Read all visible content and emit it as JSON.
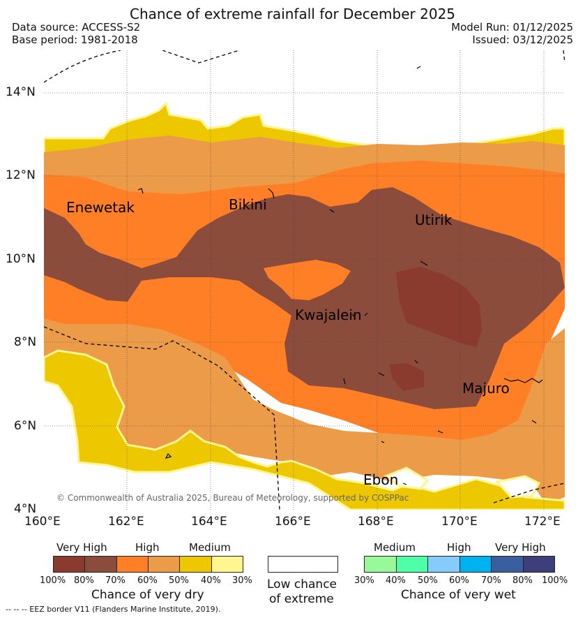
{
  "title": "Chance of extreme rainfall for December 2025",
  "header": {
    "data_source": "Data source: ACCESS-S2",
    "base_period": "Base period: 1981-2018",
    "model_run": "Model Run: 01/12/2025",
    "issued": "Issued: 03/12/2025"
  },
  "map": {
    "y_ticks": [
      "14°N",
      "12°N",
      "10°N",
      "8°N",
      "6°N",
      "4°N"
    ],
    "x_ticks": [
      "160°E",
      "162°E",
      "164°E",
      "166°E",
      "168°E",
      "170°E",
      "172°E"
    ],
    "place_labels": {
      "enewetak": "Enewetak",
      "bikini": "Bikini",
      "utirik": "Utirik",
      "kwajalein": "Kwajalein",
      "majuro": "Majuro",
      "ebon": "Ebon"
    },
    "copyright": "© Commonwealth of Australia 2025, Bureau of Meteorology, supported by COSPPac"
  },
  "legend": {
    "dry": {
      "levels": [
        "Very High",
        "High",
        "Medium"
      ],
      "ticks": [
        "100%",
        "80%",
        "70%",
        "60%",
        "50%",
        "40%",
        "30%"
      ],
      "colors": [
        "#8b3a2e",
        "#8b4c3c",
        "#ff7f27",
        "#ec9b48",
        "#edc800",
        "#fff68f"
      ],
      "caption": "Chance of very dry"
    },
    "low": {
      "caption_line1": "Low chance",
      "caption_line2": "of extreme"
    },
    "wet": {
      "levels": [
        "Medium",
        "High",
        "Very High"
      ],
      "ticks": [
        "30%",
        "40%",
        "50%",
        "60%",
        "70%",
        "80%",
        "100%"
      ],
      "colors": [
        "#98f99a",
        "#4dffa6",
        "#86ccfb",
        "#00b2ef",
        "#3b5f9e",
        "#3e3e7a"
      ],
      "caption": "Chance of very wet"
    }
  },
  "footnote": "-- -- -- EEZ border V11 (Flanders Marine Institute, 2019)."
}
